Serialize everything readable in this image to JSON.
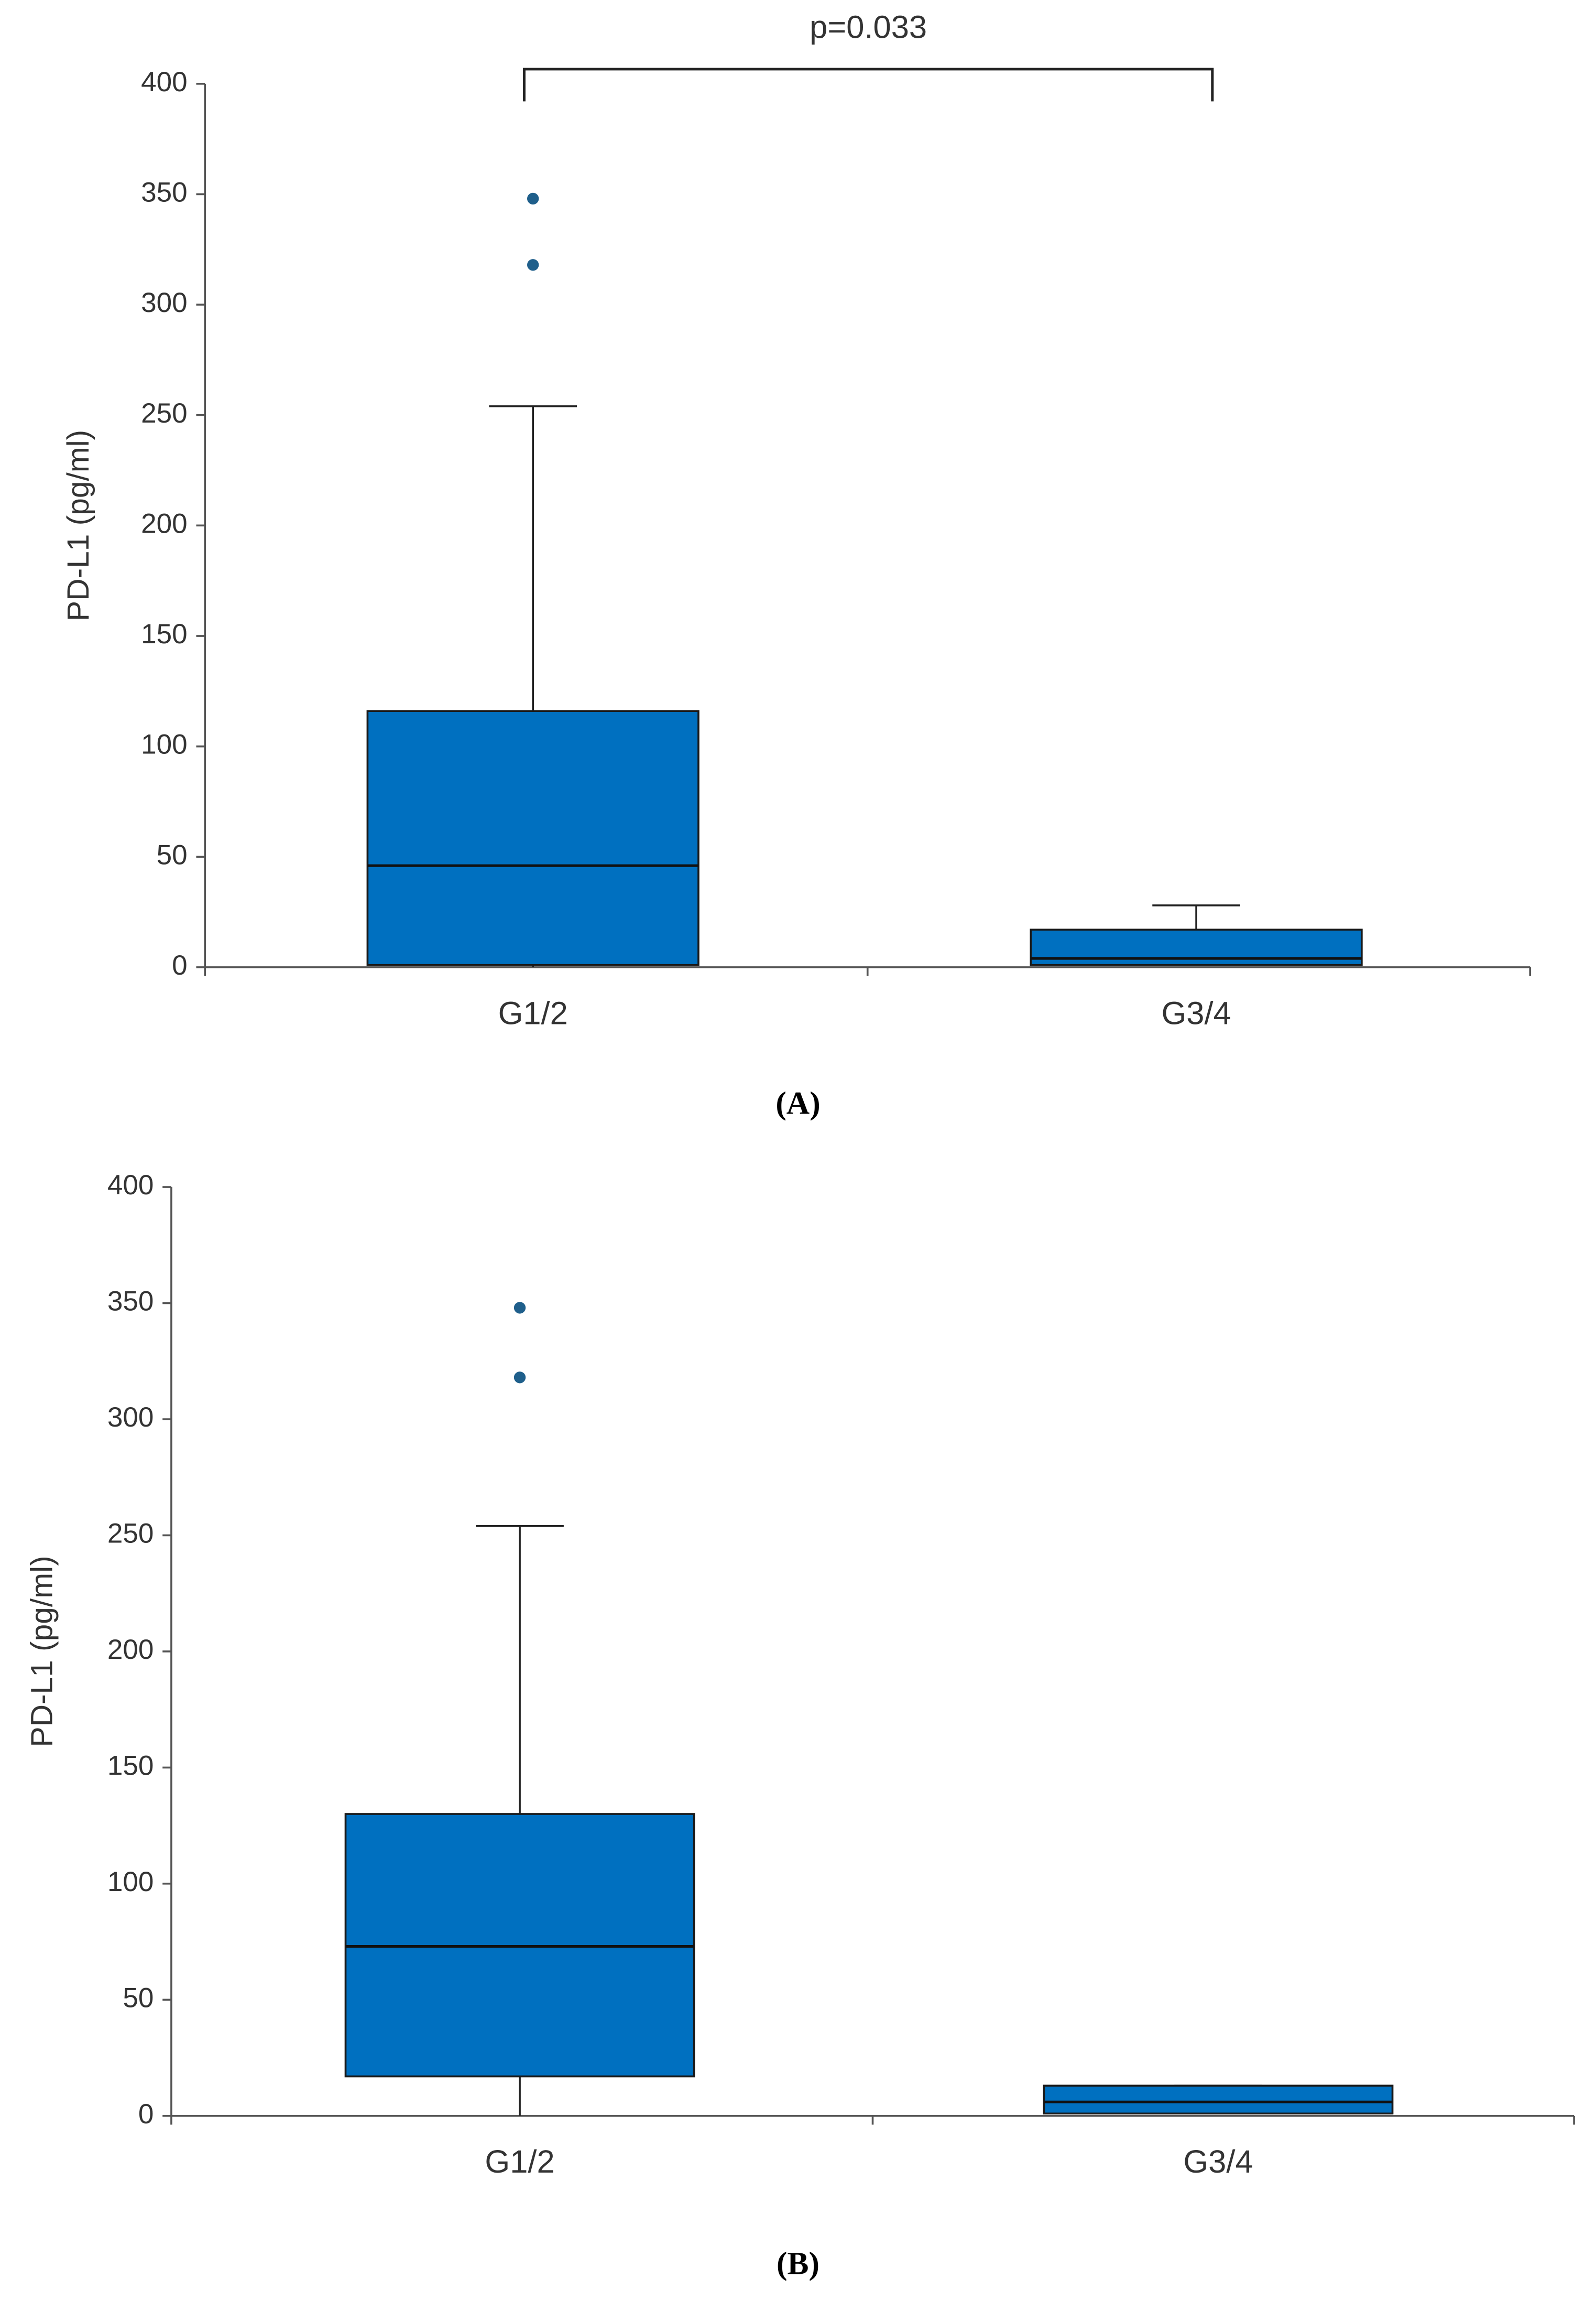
{
  "chart_data": [
    {
      "type": "box",
      "caption": "(A)",
      "ylabel": "PD-L1 (pg/ml)",
      "annotation": "p=0.033",
      "categories": [
        "G1/2",
        "G3/4"
      ],
      "color": "#0070c0",
      "boxes": [
        {
          "min": 0,
          "q1": 1,
          "median": 46,
          "q3": 116,
          "max": 254,
          "outliers": [
            318,
            348
          ]
        },
        {
          "min": 1,
          "q1": 1,
          "median": 4,
          "q3": 17,
          "max": 28,
          "outliers": []
        }
      ],
      "ylim": [
        0,
        400
      ],
      "yticks": [
        0,
        50,
        100,
        150,
        200,
        250,
        300,
        350,
        400
      ]
    },
    {
      "type": "box",
      "caption": "(B)",
      "ylabel": "PD-L1 (pg/ml)",
      "categories": [
        "G1/2",
        "G3/4"
      ],
      "color": "#0070c0",
      "boxes": [
        {
          "min": 0,
          "q1": 17,
          "median": 73,
          "q3": 130,
          "max": 254,
          "outliers": [
            318,
            348
          ]
        },
        {
          "min": 1,
          "q1": 1,
          "median": 6,
          "q3": 13,
          "max": 13,
          "outliers": []
        }
      ],
      "ylim": [
        0,
        400
      ],
      "yticks": [
        0,
        50,
        100,
        150,
        200,
        250,
        300,
        350,
        400
      ]
    }
  ]
}
